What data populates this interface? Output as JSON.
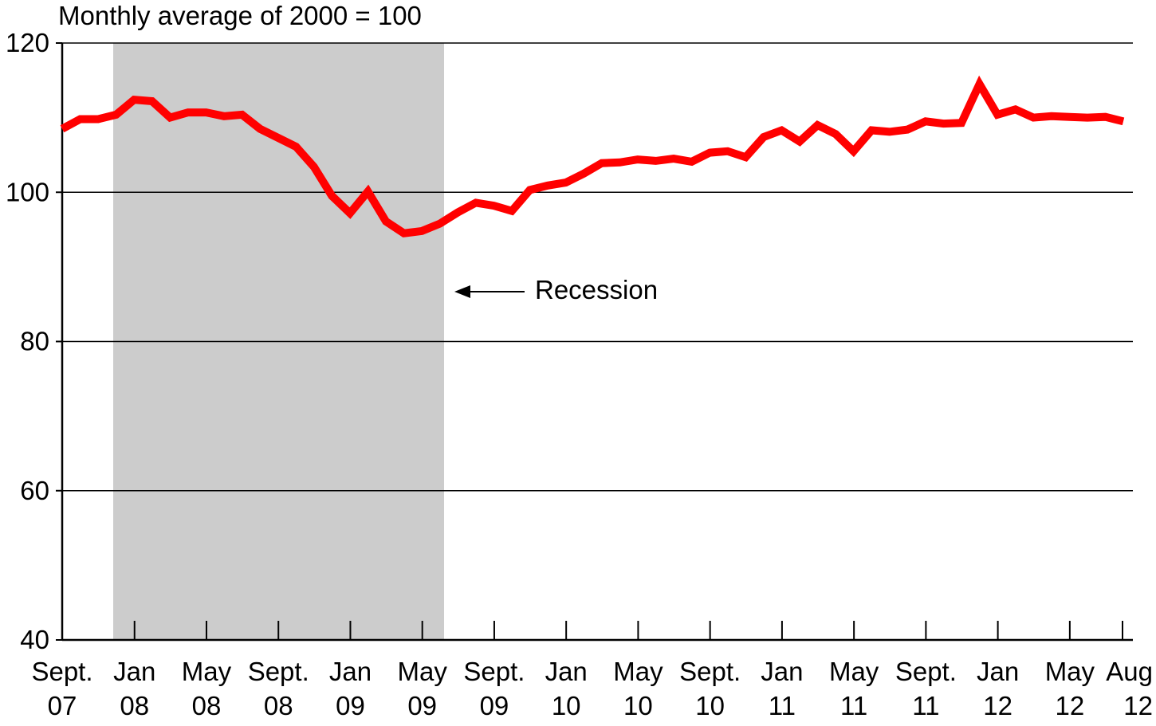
{
  "chart_data": {
    "type": "line",
    "title": "",
    "ylabel": "Monthly average of 2000 = 100",
    "xlabel": "",
    "ylim": [
      40,
      120
    ],
    "yticks": [
      40,
      60,
      80,
      100,
      120
    ],
    "grid": "horizontal",
    "colors": {
      "line": "#ff0000",
      "recession": "#cccccc",
      "axis": "#000000"
    },
    "x_tick_labels": [
      {
        "month": "Sept.",
        "year": "07"
      },
      {
        "month": "Jan",
        "year": "08"
      },
      {
        "month": "May",
        "year": "08"
      },
      {
        "month": "Sept.",
        "year": "08"
      },
      {
        "month": "Jan",
        "year": "09"
      },
      {
        "month": "May",
        "year": "09"
      },
      {
        "month": "Sept.",
        "year": "09"
      },
      {
        "month": "Jan",
        "year": "10"
      },
      {
        "month": "May",
        "year": "10"
      },
      {
        "month": "Sept.",
        "year": "10"
      },
      {
        "month": "Jan",
        "year": "11"
      },
      {
        "month": "May",
        "year": "11"
      },
      {
        "month": "Sept.",
        "year": "11"
      },
      {
        "month": "Jan",
        "year": "12"
      },
      {
        "month": "May",
        "year": "12"
      },
      {
        "month": "Aug",
        "year": "12"
      }
    ],
    "recession": {
      "start": "Dec 2007",
      "end": "Jun 2009",
      "label": "Recession"
    },
    "series": [
      {
        "values": [
          108.5,
          109.8,
          109.8,
          110.4,
          112.4,
          112.2,
          110.0,
          110.7,
          110.7,
          110.2,
          110.4,
          108.5,
          107.3,
          106.1,
          103.4,
          99.5,
          97.2,
          100.1,
          96.1,
          94.5,
          94.8,
          95.8,
          97.3,
          98.6,
          98.2,
          97.5,
          100.3,
          100.9,
          101.3,
          102.5,
          103.9,
          104.0,
          104.4,
          104.2,
          104.5,
          104.1,
          105.3,
          105.5,
          104.7,
          107.4,
          108.3,
          106.8,
          109.0,
          107.8,
          105.5,
          108.3,
          108.1,
          108.4,
          109.5,
          109.2,
          109.3,
          114.5,
          110.4,
          111.1,
          110.0,
          110.2,
          110.1,
          110.0,
          110.1,
          109.5
        ]
      }
    ]
  }
}
